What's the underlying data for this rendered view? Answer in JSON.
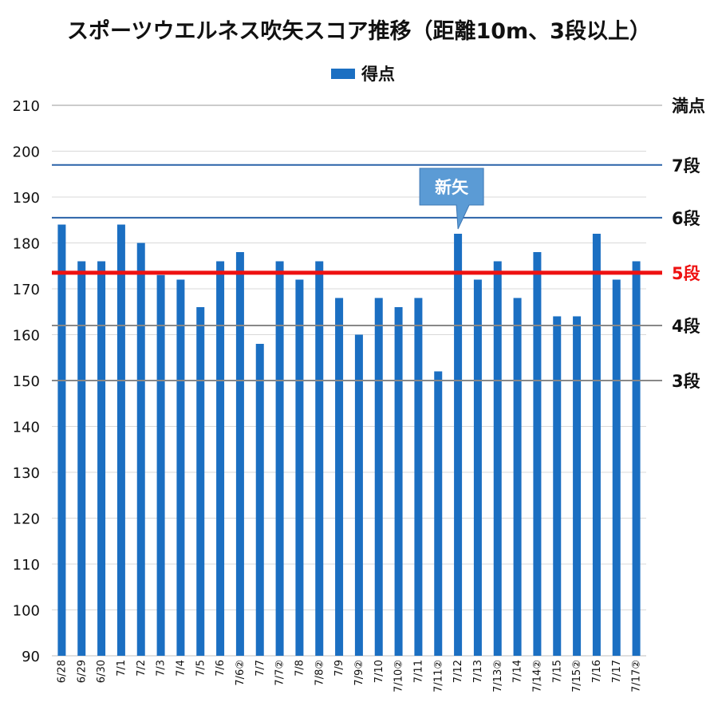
{
  "chart_data": {
    "type": "bar",
    "title": "スポーツウエルネス吹矢スコア推移（距離10m、3段以上）",
    "legend": "得点",
    "legend_position": "top-center",
    "xlabel": "",
    "ylabel": "",
    "ylim": [
      90,
      210
    ],
    "yticks": [
      90,
      100,
      110,
      120,
      130,
      140,
      150,
      160,
      170,
      180,
      190,
      200,
      210
    ],
    "grid": true,
    "bar_color": "#1b6fc2",
    "categories": [
      "6/28",
      "6/29",
      "6/30",
      "7/1",
      "7/2",
      "7/3",
      "7/4",
      "7/5",
      "7/6",
      "7/6②",
      "7/7",
      "7/7②",
      "7/8",
      "7/8②",
      "7/9",
      "7/9②",
      "7/10",
      "7/10②",
      "7/11",
      "7/11②",
      "7/12",
      "7/13",
      "7/13②",
      "7/14",
      "7/14②",
      "7/15",
      "7/15②",
      "7/16",
      "7/17",
      "7/17②"
    ],
    "series": [
      {
        "name": "得点",
        "values": [
          184,
          176,
          176,
          184,
          180,
          173,
          172,
          166,
          176,
          178,
          158,
          176,
          172,
          176,
          168,
          160,
          168,
          166,
          168,
          152,
          182,
          172,
          176,
          168,
          178,
          164,
          164,
          182,
          172,
          176
        ]
      }
    ],
    "reference_lines": [
      {
        "label": "満点",
        "value": 210,
        "color": "#cccccc",
        "emphasis": false
      },
      {
        "label": "7段",
        "value": 197,
        "color": "#2a62a8",
        "emphasis": false
      },
      {
        "label": "6段",
        "value": 185.5,
        "color": "#2a62a8",
        "emphasis": false
      },
      {
        "label": "5段",
        "value": 173.5,
        "color": "#ee1111",
        "emphasis": true
      },
      {
        "label": "4段",
        "value": 162,
        "color": "#888888",
        "emphasis": false
      },
      {
        "label": "3段",
        "value": 150,
        "color": "#888888",
        "emphasis": false
      }
    ],
    "annotations": [
      {
        "text": "新矢",
        "category": "7/12",
        "fill": "#5b9bd5"
      }
    ]
  }
}
